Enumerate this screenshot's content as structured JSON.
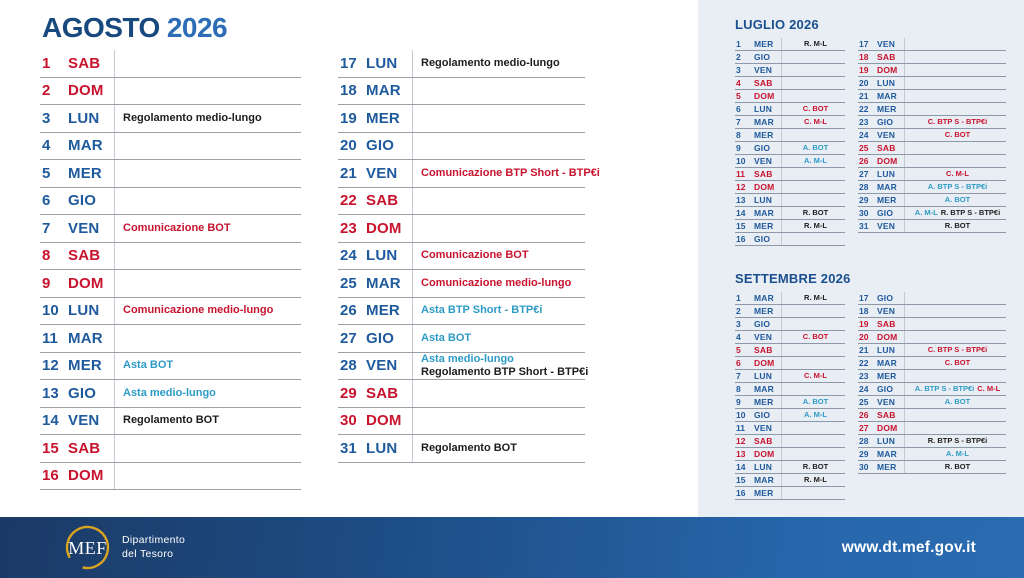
{
  "colors": {
    "navy": "#1e5a9c",
    "red": "#c8132e",
    "asta": "#2e9bc6",
    "dark": "#1d1d1b",
    "title-month": "#17497f",
    "title-year": "#2d6db5",
    "mini-title": "#1a4f8f",
    "panel-bg": "#e9edf4",
    "row-line": "#9aa0a6",
    "mini-line": "#8d99a8",
    "divider": "#c5cad1",
    "bar-navy": "#1b3a66",
    "bar-blue": "#2766ab",
    "gold": "#d9a41f"
  },
  "header": {
    "month": "AGOSTO",
    "year": "2026"
  },
  "august": {
    "left": [
      {
        "d": "1",
        "w": "SAB",
        "we": true,
        "ev": []
      },
      {
        "d": "2",
        "w": "DOM",
        "we": true,
        "ev": []
      },
      {
        "d": "3",
        "w": "LUN",
        "ev": [
          {
            "t": "Regolamento medio-lungo",
            "c": "reg"
          }
        ]
      },
      {
        "d": "4",
        "w": "MAR",
        "ev": []
      },
      {
        "d": "5",
        "w": "MER",
        "ev": []
      },
      {
        "d": "6",
        "w": "GIO",
        "ev": []
      },
      {
        "d": "7",
        "w": "VEN",
        "ev": [
          {
            "t": "Comunicazione BOT",
            "c": "com"
          }
        ]
      },
      {
        "d": "8",
        "w": "SAB",
        "we": true,
        "ev": []
      },
      {
        "d": "9",
        "w": "DOM",
        "we": true,
        "ev": []
      },
      {
        "d": "10",
        "w": "LUN",
        "ev": [
          {
            "t": "Comunicazione medio-lungo",
            "c": "com"
          }
        ]
      },
      {
        "d": "11",
        "w": "MAR",
        "ev": []
      },
      {
        "d": "12",
        "w": "MER",
        "ev": [
          {
            "t": "Asta BOT",
            "c": "asta"
          }
        ]
      },
      {
        "d": "13",
        "w": "GIO",
        "ev": [
          {
            "t": "Asta medio-lungo",
            "c": "asta"
          }
        ]
      },
      {
        "d": "14",
        "w": "VEN",
        "ev": [
          {
            "t": "Regolamento BOT",
            "c": "reg"
          }
        ]
      },
      {
        "d": "15",
        "w": "SAB",
        "we": true,
        "ev": []
      },
      {
        "d": "16",
        "w": "DOM",
        "we": true,
        "ev": []
      }
    ],
    "right": [
      {
        "d": "17",
        "w": "LUN",
        "ev": [
          {
            "t": "Regolamento medio-lungo",
            "c": "reg"
          }
        ]
      },
      {
        "d": "18",
        "w": "MAR",
        "ev": []
      },
      {
        "d": "19",
        "w": "MER",
        "ev": []
      },
      {
        "d": "20",
        "w": "GIO",
        "ev": []
      },
      {
        "d": "21",
        "w": "VEN",
        "ev": [
          {
            "t": "Comunicazione BTP Short - BTP€i",
            "c": "com"
          }
        ]
      },
      {
        "d": "22",
        "w": "SAB",
        "we": true,
        "ev": []
      },
      {
        "d": "23",
        "w": "DOM",
        "we": true,
        "ev": []
      },
      {
        "d": "24",
        "w": "LUN",
        "ev": [
          {
            "t": "Comunicazione BOT",
            "c": "com"
          }
        ]
      },
      {
        "d": "25",
        "w": "MAR",
        "ev": [
          {
            "t": "Comunicazione medio-lungo",
            "c": "com"
          }
        ]
      },
      {
        "d": "26",
        "w": "MER",
        "ev": [
          {
            "t": "Asta BTP Short - BTP€i",
            "c": "asta"
          }
        ]
      },
      {
        "d": "27",
        "w": "GIO",
        "ev": [
          {
            "t": "Asta BOT",
            "c": "asta"
          }
        ]
      },
      {
        "d": "28",
        "w": "VEN",
        "ev": [
          {
            "t": "Asta medio-lungo",
            "c": "asta"
          },
          {
            "t": "Regolamento BTP Short - BTP€i",
            "c": "reg"
          }
        ]
      },
      {
        "d": "29",
        "w": "SAB",
        "we": true,
        "ev": []
      },
      {
        "d": "30",
        "w": "DOM",
        "we": true,
        "ev": []
      },
      {
        "d": "31",
        "w": "LUN",
        "ev": [
          {
            "t": "Regolamento BOT",
            "c": "reg"
          }
        ]
      }
    ]
  },
  "minis": [
    {
      "title": "LUGLIO 2026",
      "left": [
        {
          "d": "1",
          "w": "MER",
          "ev": [
            {
              "t": "R. M-L",
              "c": "reg"
            }
          ]
        },
        {
          "d": "2",
          "w": "GIO",
          "ev": []
        },
        {
          "d": "3",
          "w": "VEN",
          "ev": []
        },
        {
          "d": "4",
          "w": "SAB",
          "we": true,
          "ev": []
        },
        {
          "d": "5",
          "w": "DOM",
          "we": true,
          "ev": []
        },
        {
          "d": "6",
          "w": "LUN",
          "ev": [
            {
              "t": "C. BOT",
              "c": "com"
            }
          ]
        },
        {
          "d": "7",
          "w": "MAR",
          "ev": [
            {
              "t": "C. M-L",
              "c": "com"
            }
          ]
        },
        {
          "d": "8",
          "w": "MER",
          "ev": []
        },
        {
          "d": "9",
          "w": "GIO",
          "ev": [
            {
              "t": "A. BOT",
              "c": "asta"
            }
          ]
        },
        {
          "d": "10",
          "w": "VEN",
          "ev": [
            {
              "t": "A. M-L",
              "c": "asta"
            }
          ]
        },
        {
          "d": "11",
          "w": "SAB",
          "we": true,
          "ev": []
        },
        {
          "d": "12",
          "w": "DOM",
          "we": true,
          "ev": []
        },
        {
          "d": "13",
          "w": "LUN",
          "ev": []
        },
        {
          "d": "14",
          "w": "MAR",
          "ev": [
            {
              "t": "R. BOT",
              "c": "reg"
            }
          ]
        },
        {
          "d": "15",
          "w": "MER",
          "ev": [
            {
              "t": "R. M-L",
              "c": "reg"
            }
          ]
        },
        {
          "d": "16",
          "w": "GIO",
          "ev": []
        }
      ],
      "right": [
        {
          "d": "17",
          "w": "VEN",
          "ev": []
        },
        {
          "d": "18",
          "w": "SAB",
          "we": true,
          "ev": []
        },
        {
          "d": "19",
          "w": "DOM",
          "we": true,
          "ev": []
        },
        {
          "d": "20",
          "w": "LUN",
          "ev": []
        },
        {
          "d": "21",
          "w": "MAR",
          "ev": []
        },
        {
          "d": "22",
          "w": "MER",
          "ev": []
        },
        {
          "d": "23",
          "w": "GIO",
          "ev": [
            {
              "t": "C. BTP S - BTP€i",
              "c": "com"
            }
          ]
        },
        {
          "d": "24",
          "w": "VEN",
          "ev": [
            {
              "t": "C. BOT",
              "c": "com"
            }
          ]
        },
        {
          "d": "25",
          "w": "SAB",
          "we": true,
          "ev": []
        },
        {
          "d": "26",
          "w": "DOM",
          "we": true,
          "ev": []
        },
        {
          "d": "27",
          "w": "LUN",
          "ev": [
            {
              "t": "C. M-L",
              "c": "com"
            }
          ]
        },
        {
          "d": "28",
          "w": "MAR",
          "ev": [
            {
              "t": "A. BTP S - BTP€i",
              "c": "asta"
            }
          ]
        },
        {
          "d": "29",
          "w": "MER",
          "ev": [
            {
              "t": "A. BOT",
              "c": "asta"
            }
          ]
        },
        {
          "d": "30",
          "w": "GIO",
          "ev": [
            {
              "t": "A. M-L",
              "c": "asta"
            },
            {
              "t": "R. BTP S - BTP€i",
              "c": "reg"
            }
          ]
        },
        {
          "d": "31",
          "w": "VEN",
          "ev": [
            {
              "t": "R. BOT",
              "c": "reg"
            }
          ]
        }
      ]
    },
    {
      "title": "SETTEMBRE 2026",
      "left": [
        {
          "d": "1",
          "w": "MAR",
          "ev": [
            {
              "t": "R. M-L",
              "c": "reg"
            }
          ]
        },
        {
          "d": "2",
          "w": "MER",
          "ev": []
        },
        {
          "d": "3",
          "w": "GIO",
          "ev": []
        },
        {
          "d": "4",
          "w": "VEN",
          "ev": [
            {
              "t": "C. BOT",
              "c": "com"
            }
          ]
        },
        {
          "d": "5",
          "w": "SAB",
          "we": true,
          "ev": []
        },
        {
          "d": "6",
          "w": "DOM",
          "we": true,
          "ev": []
        },
        {
          "d": "7",
          "w": "LUN",
          "ev": [
            {
              "t": "C. M-L",
              "c": "com"
            }
          ]
        },
        {
          "d": "8",
          "w": "MAR",
          "ev": []
        },
        {
          "d": "9",
          "w": "MER",
          "ev": [
            {
              "t": "A. BOT",
              "c": "asta"
            }
          ]
        },
        {
          "d": "10",
          "w": "GIO",
          "ev": [
            {
              "t": "A. M-L",
              "c": "asta"
            }
          ]
        },
        {
          "d": "11",
          "w": "VEN",
          "ev": []
        },
        {
          "d": "12",
          "w": "SAB",
          "we": true,
          "ev": []
        },
        {
          "d": "13",
          "w": "DOM",
          "we": true,
          "ev": []
        },
        {
          "d": "14",
          "w": "LUN",
          "ev": [
            {
              "t": "R. BOT",
              "c": "reg"
            }
          ]
        },
        {
          "d": "15",
          "w": "MAR",
          "ev": [
            {
              "t": "R. M-L",
              "c": "reg"
            }
          ]
        },
        {
          "d": "16",
          "w": "MER",
          "ev": []
        }
      ],
      "right": [
        {
          "d": "17",
          "w": "GIO",
          "ev": []
        },
        {
          "d": "18",
          "w": "VEN",
          "ev": []
        },
        {
          "d": "19",
          "w": "SAB",
          "we": true,
          "ev": []
        },
        {
          "d": "20",
          "w": "DOM",
          "we": true,
          "ev": []
        },
        {
          "d": "21",
          "w": "LUN",
          "ev": [
            {
              "t": "C. BTP S - BTP€i",
              "c": "com"
            }
          ]
        },
        {
          "d": "22",
          "w": "MAR",
          "ev": [
            {
              "t": "C. BOT",
              "c": "com"
            }
          ]
        },
        {
          "d": "23",
          "w": "MER",
          "ev": []
        },
        {
          "d": "24",
          "w": "GIO",
          "ev": [
            {
              "t": "A. BTP S - BTP€i",
              "c": "asta"
            },
            {
              "t": "C. M-L",
              "c": "com"
            }
          ]
        },
        {
          "d": "25",
          "w": "VEN",
          "ev": [
            {
              "t": "A. BOT",
              "c": "asta"
            }
          ]
        },
        {
          "d": "26",
          "w": "SAB",
          "we": true,
          "ev": []
        },
        {
          "d": "27",
          "w": "DOM",
          "we": true,
          "ev": []
        },
        {
          "d": "28",
          "w": "LUN",
          "ev": [
            {
              "t": "R. BTP S - BTP€i",
              "c": "reg"
            }
          ]
        },
        {
          "d": "29",
          "w": "MAR",
          "ev": [
            {
              "t": "A. M-L",
              "c": "asta"
            }
          ]
        },
        {
          "d": "30",
          "w": "MER",
          "ev": [
            {
              "t": "R. BOT",
              "c": "reg"
            }
          ]
        }
      ]
    }
  ],
  "footer": {
    "logo": "MEF",
    "dept_line1": "Dipartimento",
    "dept_line2": "del Tesoro",
    "url": "www.dt.mef.gov.it"
  }
}
